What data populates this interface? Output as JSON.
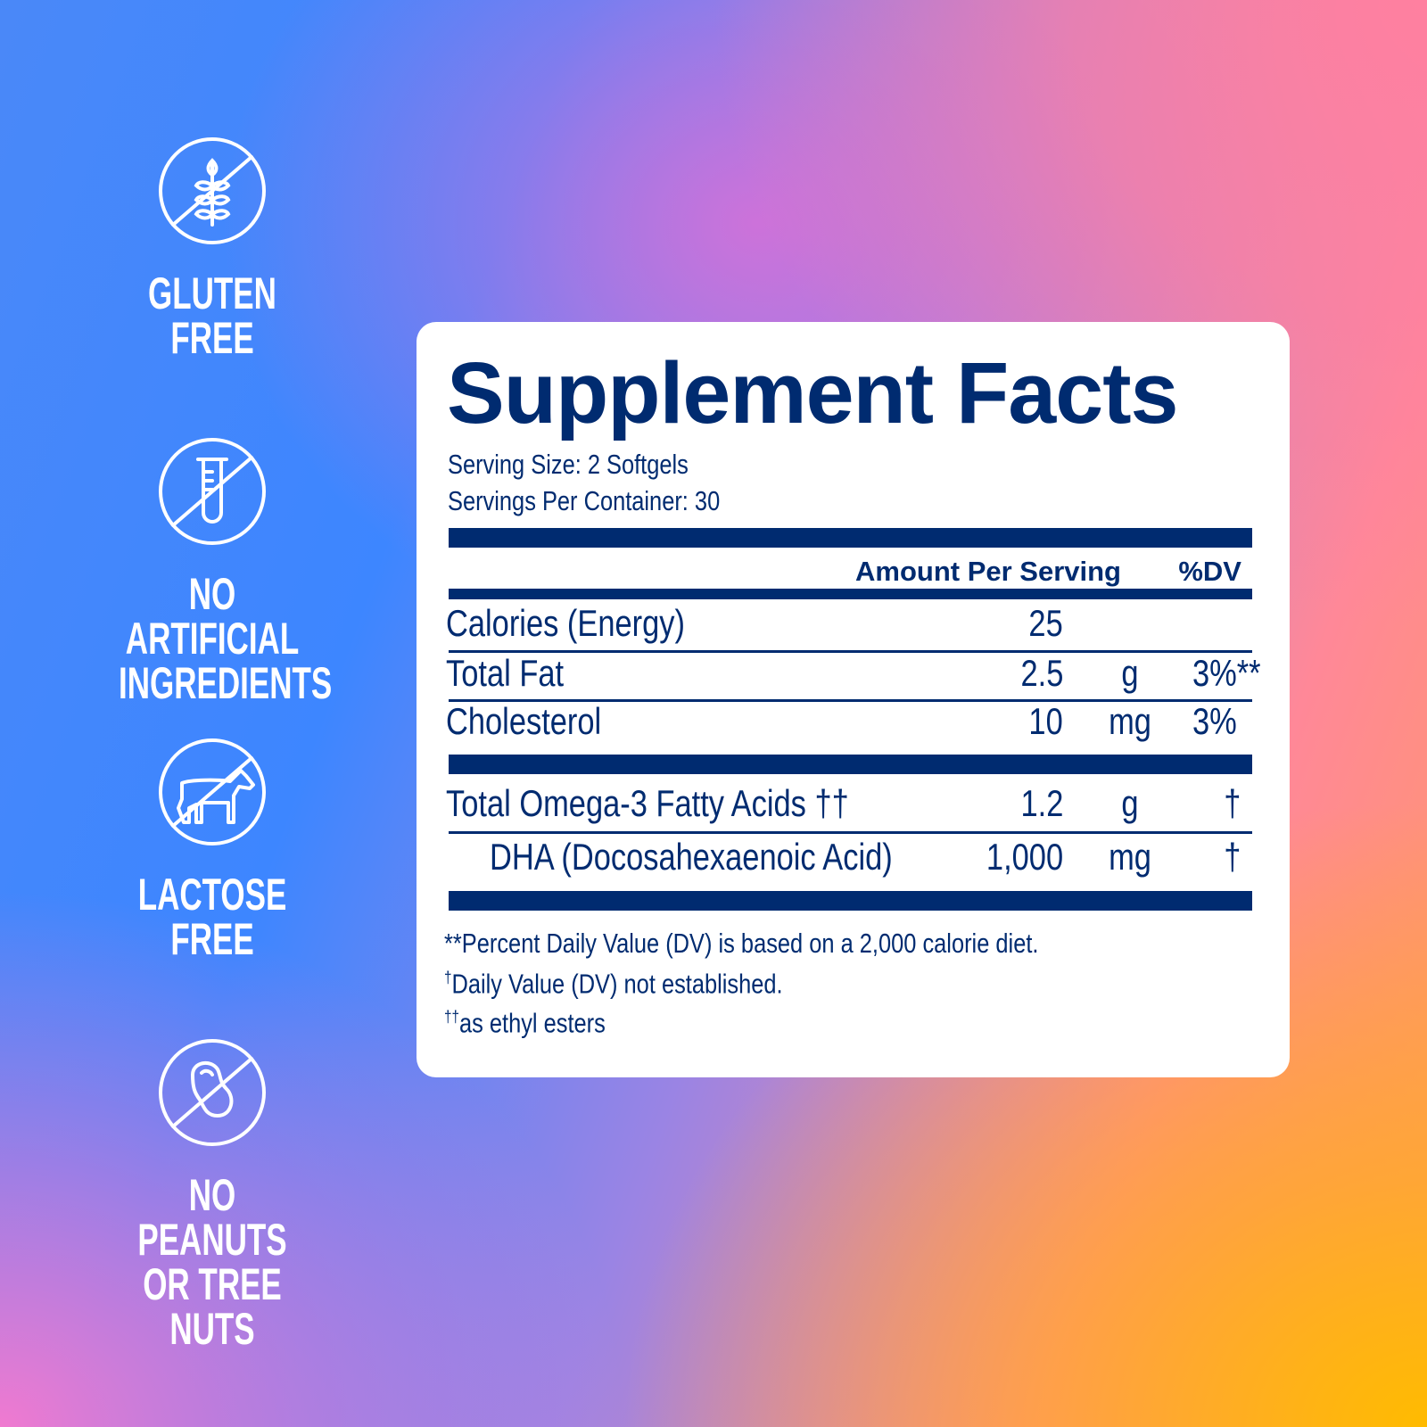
{
  "badges": [
    {
      "icon": "no-wheat-icon",
      "lines": [
        "GLUTEN",
        "FREE"
      ]
    },
    {
      "icon": "no-test-tube-icon",
      "lines": [
        "NO ARTIFICIAL",
        "INGREDIENTS"
      ]
    },
    {
      "icon": "no-cow-icon",
      "lines": [
        "LACTOSE",
        "FREE"
      ]
    },
    {
      "icon": "no-peanut-icon",
      "lines": [
        "NO PEANUTS",
        "OR TREE NUTS"
      ]
    }
  ],
  "facts": {
    "title": "Supplement Facts",
    "serving_size": "Serving Size: 2 Softgels",
    "servings_per_container": "Servings Per Container: 30",
    "header_amount": "Amount Per Serving",
    "header_dv": "%DV",
    "rows": [
      {
        "name": "Calories (Energy)",
        "amount": "25",
        "unit": "",
        "dv": ""
      },
      {
        "name": "Total Fat",
        "amount": "2.5",
        "unit": "g",
        "dv": "3%**"
      },
      {
        "name": "Cholesterol",
        "amount": "10",
        "unit": "mg",
        "dv": "3%"
      },
      {
        "name": "Total Omega-3 Fatty Acids ††",
        "amount": "1.2",
        "unit": "g",
        "dv": "†"
      },
      {
        "name": "DHA (Docosahexaenoic Acid)",
        "amount": "1,000",
        "unit": "mg",
        "dv": "†"
      }
    ],
    "footnotes": [
      {
        "mark": "",
        "text": "**Percent Daily Value (DV) is based on a 2,000 calorie diet."
      },
      {
        "mark": "†",
        "text": "Daily Value (DV) not established."
      },
      {
        "mark": "††",
        "text": "as ethyl esters"
      }
    ]
  },
  "colors": {
    "navy": "#002b70",
    "panel": "#ffffff",
    "badge_text": "#ffffff"
  }
}
